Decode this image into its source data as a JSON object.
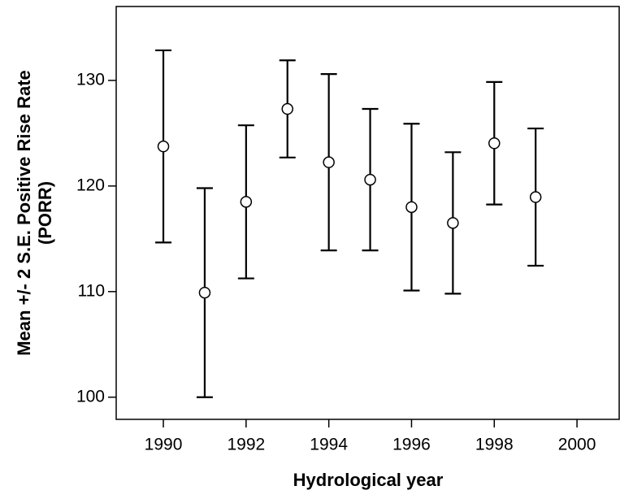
{
  "chart_data": {
    "type": "errorbar",
    "xlabel": "Hydrological year",
    "ylabel": [
      "Mean +/- 2 S.E. Positive Rise Rate",
      "(PORR)"
    ],
    "x": [
      1990,
      1991,
      1992,
      1993,
      1994,
      1995,
      1996,
      1997,
      1998,
      1999
    ],
    "values": [
      123.75,
      109.9,
      118.5,
      127.3,
      122.25,
      120.6,
      118.0,
      116.5,
      124.05,
      118.95
    ],
    "errors": [
      9.1,
      9.9,
      7.25,
      4.6,
      8.35,
      6.7,
      7.9,
      6.7,
      5.8,
      6.5
    ],
    "color": "#000000",
    "xlim": [
      1988.86,
      2001.02
    ],
    "xticks": [
      1990,
      1992,
      1994,
      1996,
      1998,
      2000
    ],
    "ylim": [
      97.9,
      137
    ],
    "yticks": [
      100,
      110,
      120,
      130
    ]
  }
}
